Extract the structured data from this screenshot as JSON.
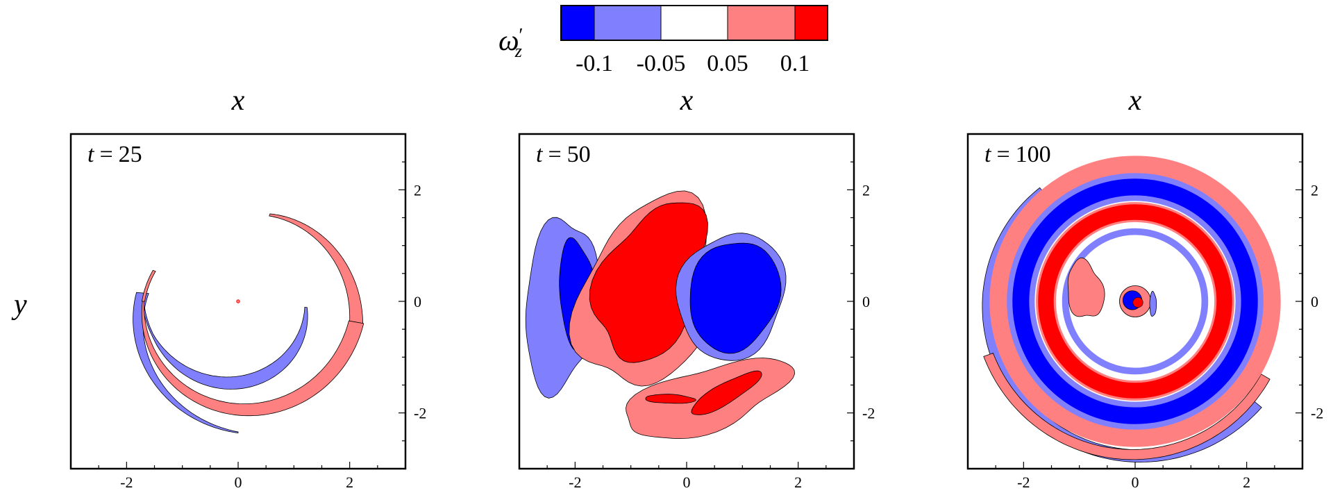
{
  "colorbar": {
    "symbol": "ω",
    "symbol_sub": "z",
    "symbol_prime": "′",
    "levels": [
      "-0.1",
      "-0.05",
      "0.05",
      "0.1"
    ],
    "colors": [
      "#0000ff",
      "#8080ff",
      "#ffffff",
      "#ff8080",
      "#ff0000"
    ]
  },
  "colors": {
    "strong_negative": "#0000ff",
    "weak_negative": "#8080ff",
    "weak_positive": "#ff8080",
    "strong_positive": "#ff0000",
    "frame": "#000000"
  },
  "chart_data": [
    {
      "type": "heatmap",
      "panel_label": {
        "var": "t",
        "eq": "=",
        "value": "25"
      },
      "xlabel": "x",
      "ylabel": "y",
      "xlim": [
        -3,
        3
      ],
      "ylim": [
        -3,
        3
      ],
      "xticks": [
        "-2",
        "0",
        "2"
      ],
      "yticks": [
        "2",
        "0",
        "-2"
      ],
      "grid": false,
      "features": [
        {
          "kind": "spiral_arm",
          "sign": "negative",
          "level": "weak",
          "description_angle_deg_from": 355,
          "description_angle_deg_to": 80,
          "r_from": 1.7,
          "r_to": 2.2
        },
        {
          "kind": "spiral_arm",
          "sign": "positive",
          "level": "weak",
          "description_angle_deg_from": 175,
          "description_angle_deg_to": 380,
          "r_from": 1.6,
          "r_to": 2.3
        },
        {
          "kind": "dot",
          "sign": "positive",
          "level": "strong",
          "x": 0.0,
          "y": 0.0
        }
      ]
    },
    {
      "type": "heatmap",
      "panel_label": {
        "var": "t",
        "eq": "=",
        "value": "50"
      },
      "xlabel": "x",
      "ylabel": "",
      "xlim": [
        -3,
        3
      ],
      "ylim": [
        -3,
        3
      ],
      "xticks": [
        "-2",
        "0",
        "2"
      ],
      "yticks": [
        "2",
        "0",
        "-2"
      ],
      "grid": false,
      "features": [
        {
          "kind": "blob",
          "sign": "negative",
          "level": "weak",
          "x": -2.3,
          "y": 0.0
        },
        {
          "kind": "blob",
          "sign": "negative",
          "level": "strong",
          "x": -1.95,
          "y": 0.05
        },
        {
          "kind": "blob",
          "sign": "positive",
          "level": "weak",
          "x": -0.8,
          "y": 0.0
        },
        {
          "kind": "blob",
          "sign": "positive",
          "level": "strong",
          "x": -0.7,
          "y": 0.3
        },
        {
          "kind": "blob",
          "sign": "negative",
          "level": "weak",
          "x": 0.8,
          "y": 0.1
        },
        {
          "kind": "blob",
          "sign": "negative",
          "level": "strong",
          "x": 0.85,
          "y": 0.1
        },
        {
          "kind": "blob",
          "sign": "positive",
          "level": "weak",
          "x": 0.3,
          "y": -1.8
        },
        {
          "kind": "blob",
          "sign": "positive",
          "level": "strong",
          "x": 0.6,
          "y": -1.7
        }
      ]
    },
    {
      "type": "heatmap",
      "panel_label": {
        "var": "t",
        "eq": "=",
        "value": "100"
      },
      "xlabel": "x",
      "ylabel": "",
      "xlim": [
        -3,
        3
      ],
      "ylim": [
        -3,
        3
      ],
      "xticks": [
        "-2",
        "0",
        "2"
      ],
      "yticks": [
        "2",
        "0",
        "-2"
      ],
      "grid": false,
      "features": [
        {
          "kind": "ring",
          "sign": "positive",
          "level": "weak",
          "r": 2.55
        },
        {
          "kind": "ring",
          "sign": "negative",
          "level": "strong",
          "r": 2.2
        },
        {
          "kind": "ring",
          "sign": "positive",
          "level": "strong",
          "r": 1.75
        },
        {
          "kind": "blob",
          "sign": "positive",
          "level": "weak",
          "x": -0.9,
          "y": 0.15
        },
        {
          "kind": "dipole",
          "sign": "mixed",
          "level": "strong",
          "x": 0.0,
          "y": 0.0
        }
      ]
    }
  ]
}
